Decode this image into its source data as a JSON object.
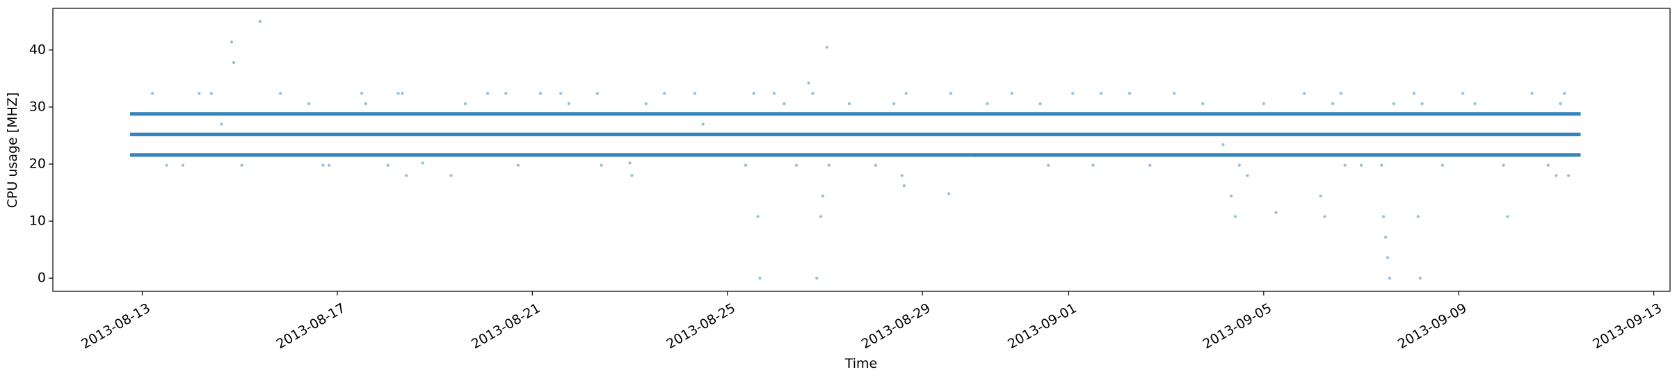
{
  "chart_data": {
    "type": "scatter",
    "title": "",
    "xlabel": "Time",
    "ylabel": "CPU usage [MHZ]",
    "x_type": "date",
    "xlim": [
      "2013-08-11T04:00",
      "2013-09-13T08:00"
    ],
    "ylim": [
      -2.3,
      47.3
    ],
    "x_ticks": [
      "2013-08-13",
      "2013-08-17",
      "2013-08-21",
      "2013-08-25",
      "2013-08-29",
      "2013-09-01",
      "2013-09-05",
      "2013-09-09",
      "2013-09-13"
    ],
    "y_ticks": [
      0,
      10,
      20,
      30,
      40
    ],
    "x_tick_rotation": 30,
    "grid": false,
    "legend": "none",
    "marker_color": "#1f77b4",
    "marker_alpha": 0.45,
    "time_range": [
      "2013-08-12T18:00",
      "2013-09-11T12:00"
    ],
    "series": [
      {
        "bands": [
          {
            "y": 21.6,
            "start": "2013-08-12T18:00",
            "end": "2013-09-11T12:00",
            "interval_minutes": 5
          },
          {
            "y": 25.2,
            "start": "2013-08-12T18:00",
            "end": "2013-09-11T12:00",
            "interval_minutes": 5
          },
          {
            "y": 28.8,
            "start": "2013-08-12T18:00",
            "end": "2013-09-11T12:00",
            "interval_minutes": 5
          }
        ],
        "points": [
          {
            "x": "2013-08-13T05:00",
            "y": 32.4
          },
          {
            "x": "2013-08-13T12:00",
            "y": 19.8
          },
          {
            "x": "2013-08-13T20:00",
            "y": 19.8
          },
          {
            "x": "2013-08-14T04:00",
            "y": 32.4
          },
          {
            "x": "2013-08-14T10:00",
            "y": 32.4
          },
          {
            "x": "2013-08-14T15:00",
            "y": 27.0
          },
          {
            "x": "2013-08-14T20:00",
            "y": 41.4
          },
          {
            "x": "2013-08-14T21:00",
            "y": 37.8
          },
          {
            "x": "2013-08-15T01:00",
            "y": 19.8
          },
          {
            "x": "2013-08-15T10:00",
            "y": 45.0
          },
          {
            "x": "2013-08-15T20:00",
            "y": 32.4
          },
          {
            "x": "2013-08-16T10:00",
            "y": 30.6
          },
          {
            "x": "2013-08-16T17:00",
            "y": 19.8
          },
          {
            "x": "2013-08-16T20:00",
            "y": 19.8
          },
          {
            "x": "2013-08-17T12:00",
            "y": 32.4
          },
          {
            "x": "2013-08-17T14:00",
            "y": 30.6
          },
          {
            "x": "2013-08-18T01:00",
            "y": 19.8
          },
          {
            "x": "2013-08-18T06:00",
            "y": 32.4
          },
          {
            "x": "2013-08-18T08:00",
            "y": 32.4
          },
          {
            "x": "2013-08-18T10:00",
            "y": 18.0
          },
          {
            "x": "2013-08-18T18:00",
            "y": 20.2
          },
          {
            "x": "2013-08-19T08:00",
            "y": 18.0
          },
          {
            "x": "2013-08-19T15:00",
            "y": 30.6
          },
          {
            "x": "2013-08-20T02:00",
            "y": 32.4
          },
          {
            "x": "2013-08-20T11:00",
            "y": 32.4
          },
          {
            "x": "2013-08-20T17:00",
            "y": 19.8
          },
          {
            "x": "2013-08-21T04:00",
            "y": 32.4
          },
          {
            "x": "2013-08-21T14:00",
            "y": 32.4
          },
          {
            "x": "2013-08-21T18:00",
            "y": 30.6
          },
          {
            "x": "2013-08-22T08:00",
            "y": 32.4
          },
          {
            "x": "2013-08-22T10:00",
            "y": 19.8
          },
          {
            "x": "2013-08-23T00:00",
            "y": 20.2
          },
          {
            "x": "2013-08-23T01:00",
            "y": 18.0
          },
          {
            "x": "2013-08-23T08:00",
            "y": 30.6
          },
          {
            "x": "2013-08-23T17:00",
            "y": 32.4
          },
          {
            "x": "2013-08-24T08:00",
            "y": 32.4
          },
          {
            "x": "2013-08-24T12:00",
            "y": 27.0
          },
          {
            "x": "2013-08-25T09:00",
            "y": 19.8
          },
          {
            "x": "2013-08-25T13:00",
            "y": 32.4
          },
          {
            "x": "2013-08-25T15:00",
            "y": 10.8
          },
          {
            "x": "2013-08-25T16:00",
            "y": 0.0
          },
          {
            "x": "2013-08-25T23:00",
            "y": 32.4
          },
          {
            "x": "2013-08-26T04:00",
            "y": 30.6
          },
          {
            "x": "2013-08-26T10:00",
            "y": 19.8
          },
          {
            "x": "2013-08-26T16:00",
            "y": 34.2
          },
          {
            "x": "2013-08-26T18:00",
            "y": 32.4
          },
          {
            "x": "2013-08-26T20:00",
            "y": 0.0
          },
          {
            "x": "2013-08-26T22:00",
            "y": 10.8
          },
          {
            "x": "2013-08-26T23:00",
            "y": 14.4
          },
          {
            "x": "2013-08-27T01:00",
            "y": 40.5
          },
          {
            "x": "2013-08-27T02:00",
            "y": 19.8
          },
          {
            "x": "2013-08-27T12:00",
            "y": 30.6
          },
          {
            "x": "2013-08-28T01:00",
            "y": 19.8
          },
          {
            "x": "2013-08-28T10:00",
            "y": 30.6
          },
          {
            "x": "2013-08-28T14:00",
            "y": 18.0
          },
          {
            "x": "2013-08-28T15:00",
            "y": 16.2
          },
          {
            "x": "2013-08-28T16:00",
            "y": 32.4
          },
          {
            "x": "2013-08-29T13:00",
            "y": 14.8
          },
          {
            "x": "2013-08-29T14:00",
            "y": 32.4
          },
          {
            "x": "2013-08-30T02:00",
            "y": 21.6
          },
          {
            "x": "2013-08-30T08:00",
            "y": 30.6
          },
          {
            "x": "2013-08-30T20:00",
            "y": 32.4
          },
          {
            "x": "2013-08-31T10:00",
            "y": 30.6
          },
          {
            "x": "2013-08-31T14:00",
            "y": 19.8
          },
          {
            "x": "2013-09-01T02:00",
            "y": 32.4
          },
          {
            "x": "2013-09-01T12:00",
            "y": 19.8
          },
          {
            "x": "2013-09-01T16:00",
            "y": 32.4
          },
          {
            "x": "2013-09-02T06:00",
            "y": 32.4
          },
          {
            "x": "2013-09-02T16:00",
            "y": 19.8
          },
          {
            "x": "2013-09-03T04:00",
            "y": 32.4
          },
          {
            "x": "2013-09-03T18:00",
            "y": 30.6
          },
          {
            "x": "2013-09-04T04:00",
            "y": 23.4
          },
          {
            "x": "2013-09-04T08:00",
            "y": 14.4
          },
          {
            "x": "2013-09-04T10:00",
            "y": 10.8
          },
          {
            "x": "2013-09-04T12:00",
            "y": 19.8
          },
          {
            "x": "2013-09-04T16:00",
            "y": 18.0
          },
          {
            "x": "2013-09-05T00:00",
            "y": 30.6
          },
          {
            "x": "2013-09-05T06:00",
            "y": 11.5
          },
          {
            "x": "2013-09-05T20:00",
            "y": 32.4
          },
          {
            "x": "2013-09-06T04:00",
            "y": 14.4
          },
          {
            "x": "2013-09-06T06:00",
            "y": 10.8
          },
          {
            "x": "2013-09-06T10:00",
            "y": 30.6
          },
          {
            "x": "2013-09-06T14:00",
            "y": 32.4
          },
          {
            "x": "2013-09-06T16:00",
            "y": 19.8
          },
          {
            "x": "2013-09-07T00:00",
            "y": 19.8
          },
          {
            "x": "2013-09-07T10:00",
            "y": 19.8
          },
          {
            "x": "2013-09-07T11:00",
            "y": 10.8
          },
          {
            "x": "2013-09-07T12:00",
            "y": 7.2
          },
          {
            "x": "2013-09-07T13:00",
            "y": 3.6
          },
          {
            "x": "2013-09-07T14:00",
            "y": 0.0
          },
          {
            "x": "2013-09-07T16:00",
            "y": 30.6
          },
          {
            "x": "2013-09-08T02:00",
            "y": 32.4
          },
          {
            "x": "2013-09-08T04:00",
            "y": 10.8
          },
          {
            "x": "2013-09-08T05:00",
            "y": 0.0
          },
          {
            "x": "2013-09-08T06:00",
            "y": 30.6
          },
          {
            "x": "2013-09-08T16:00",
            "y": 19.8
          },
          {
            "x": "2013-09-09T02:00",
            "y": 32.4
          },
          {
            "x": "2013-09-09T08:00",
            "y": 30.6
          },
          {
            "x": "2013-09-09T22:00",
            "y": 19.8
          },
          {
            "x": "2013-09-10T00:00",
            "y": 10.8
          },
          {
            "x": "2013-09-10T12:00",
            "y": 32.4
          },
          {
            "x": "2013-09-10T20:00",
            "y": 19.8
          },
          {
            "x": "2013-09-11T00:00",
            "y": 18.0
          },
          {
            "x": "2013-09-11T02:00",
            "y": 30.6
          },
          {
            "x": "2013-09-11T04:00",
            "y": 32.4
          },
          {
            "x": "2013-09-11T06:00",
            "y": 18.0
          }
        ]
      }
    ]
  }
}
